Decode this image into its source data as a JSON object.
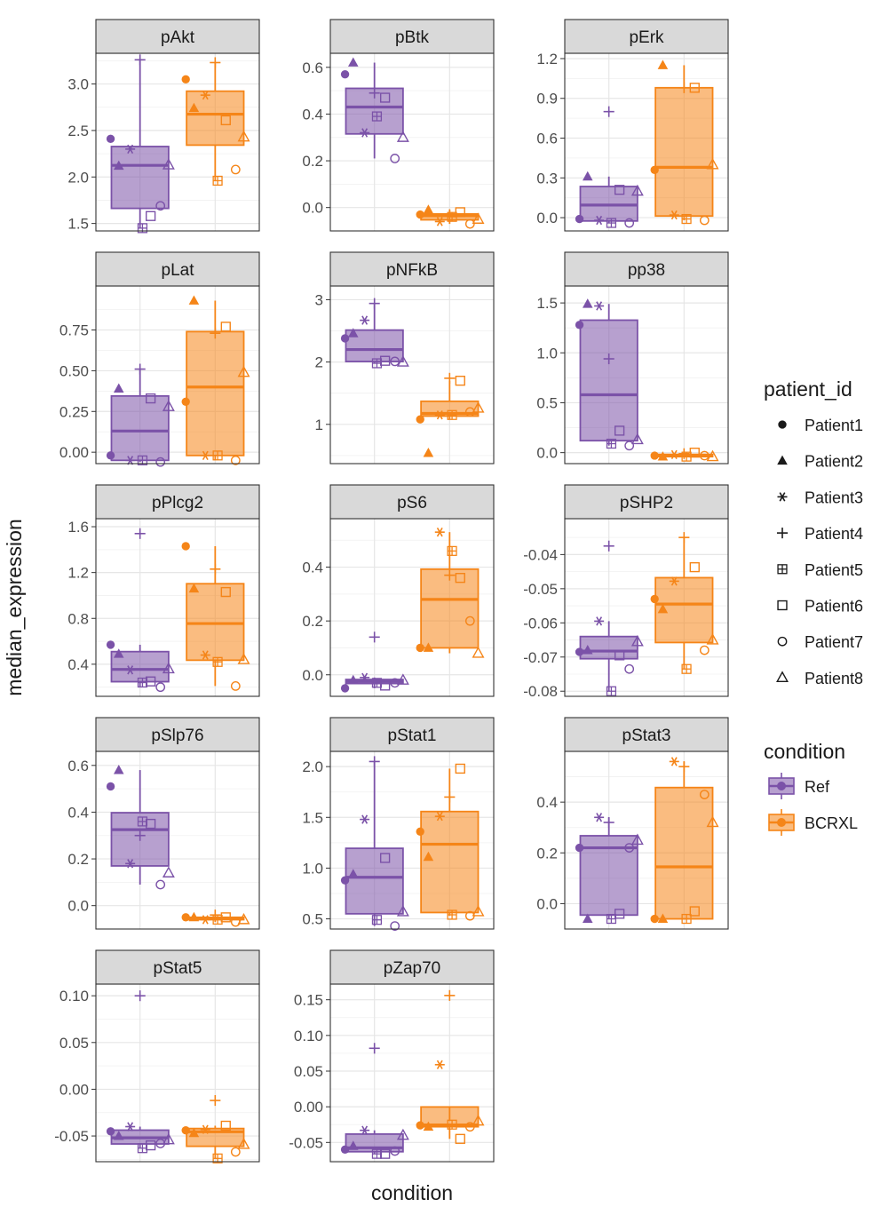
{
  "chart_data": {
    "type": "box",
    "xlabel": "condition",
    "ylabel": "median_expression",
    "conditions": [
      "Ref",
      "BCRXL"
    ],
    "patients": [
      "Patient1",
      "Patient2",
      "Patient3",
      "Patient4",
      "Patient5",
      "Patient6",
      "Patient7",
      "Patient8"
    ],
    "colors": {
      "Ref": "#7b52a8",
      "BCRXL": "#f58518"
    },
    "legend": {
      "patient_title": "patient_id",
      "patient_shapes": [
        "dot",
        "triangle",
        "asterisk",
        "plus",
        "boxed-plus",
        "square",
        "circle",
        "open-triangle"
      ],
      "condition_title": "condition",
      "placement": "right"
    },
    "grid": true,
    "panels": [
      {
        "title": "pAkt",
        "ylim": [
          1.42,
          3.33
        ],
        "yticks": [
          1.5,
          2.0,
          2.5,
          3.0
        ],
        "tick_labels": [
          "1.5",
          "2.0",
          "2.5",
          "3.0"
        ],
        "Ref": [
          2.41,
          2.12,
          2.3,
          3.26,
          1.45,
          1.58,
          1.69,
          2.13
        ],
        "BCRXL": [
          3.05,
          2.74,
          2.88,
          3.23,
          1.96,
          2.61,
          2.08,
          2.43
        ]
      },
      {
        "title": "pBtk",
        "ylim": [
          -0.1,
          0.66
        ],
        "yticks": [
          0.0,
          0.2,
          0.4,
          0.6
        ],
        "tick_labels": [
          "0.0",
          "0.2",
          "0.4",
          "0.6"
        ],
        "Ref": [
          0.57,
          0.62,
          0.32,
          0.49,
          0.39,
          0.47,
          0.21,
          0.3
        ],
        "BCRXL": [
          -0.03,
          -0.01,
          -0.06,
          -0.03,
          -0.04,
          -0.02,
          -0.07,
          -0.05
        ]
      },
      {
        "title": "pErk",
        "ylim": [
          -0.1,
          1.24
        ],
        "yticks": [
          0.0,
          0.3,
          0.6,
          0.9,
          1.2
        ],
        "tick_labels": [
          "0.0",
          "0.3",
          "0.6",
          "0.9",
          "1.2"
        ],
        "Ref": [
          -0.01,
          0.31,
          -0.02,
          0.8,
          -0.04,
          0.21,
          -0.04,
          0.2
        ],
        "BCRXL": [
          0.36,
          1.15,
          0.02,
          0.98,
          -0.01,
          0.98,
          -0.02,
          0.4
        ]
      },
      {
        "title": "pLat",
        "ylim": [
          -0.07,
          1.02
        ],
        "yticks": [
          0.0,
          0.25,
          0.5,
          0.75
        ],
        "tick_labels": [
          "0.00",
          "0.25",
          "0.50",
          "0.75"
        ],
        "Ref": [
          -0.02,
          0.39,
          -0.05,
          0.51,
          -0.05,
          0.33,
          -0.06,
          0.28
        ],
        "BCRXL": [
          0.31,
          0.93,
          -0.02,
          0.73,
          -0.02,
          0.77,
          -0.05,
          0.49
        ]
      },
      {
        "title": "pNFkB",
        "ylim": [
          0.37,
          3.22
        ],
        "yticks": [
          1,
          2,
          3
        ],
        "tick_labels": [
          "1",
          "2",
          "3"
        ],
        "Ref": [
          2.38,
          2.46,
          2.67,
          2.94,
          1.98,
          2.02,
          2.01,
          2.0
        ],
        "BCRXL": [
          1.08,
          0.54,
          1.15,
          1.74,
          1.15,
          1.7,
          1.2,
          1.26
        ]
      },
      {
        "title": "pp38",
        "ylim": [
          -0.11,
          1.67
        ],
        "yticks": [
          0.0,
          0.5,
          1.0,
          1.5
        ],
        "tick_labels": [
          "0.0",
          "0.5",
          "1.0",
          "1.5"
        ],
        "Ref": [
          1.28,
          1.49,
          1.47,
          0.94,
          0.09,
          0.22,
          0.07,
          0.13
        ],
        "BCRXL": [
          -0.03,
          -0.04,
          -0.02,
          -0.01,
          -0.04,
          0.0,
          -0.03,
          -0.04
        ]
      },
      {
        "title": "pPlcg2",
        "ylim": [
          0.12,
          1.67
        ],
        "yticks": [
          0.4,
          0.8,
          1.2,
          1.6
        ],
        "tick_labels": [
          "0.4",
          "0.8",
          "1.2",
          "1.6"
        ],
        "Ref": [
          0.57,
          0.49,
          0.35,
          1.54,
          0.24,
          0.25,
          0.2,
          0.36
        ],
        "BCRXL": [
          1.43,
          1.06,
          0.48,
          1.23,
          0.42,
          1.03,
          0.21,
          0.44
        ]
      },
      {
        "title": "pS6",
        "ylim": [
          -0.08,
          0.58
        ],
        "yticks": [
          0.0,
          0.2,
          0.4
        ],
        "tick_labels": [
          "0.0",
          "0.2",
          "0.4"
        ],
        "Ref": [
          -0.05,
          -0.02,
          -0.01,
          0.14,
          -0.03,
          -0.04,
          -0.03,
          -0.02
        ],
        "BCRXL": [
          0.1,
          0.1,
          0.53,
          0.37,
          0.46,
          0.36,
          0.2,
          0.08
        ]
      },
      {
        "title": "pSHP2",
        "ylim": [
          -0.0815,
          -0.0295
        ],
        "yticks": [
          -0.08,
          -0.07,
          -0.06,
          -0.05,
          -0.04
        ],
        "tick_labels": [
          "-0.08",
          "-0.07",
          "-0.06",
          "-0.05",
          "-0.04"
        ],
        "Ref": [
          -0.0685,
          -0.068,
          -0.0595,
          -0.0375,
          -0.08,
          -0.0695,
          -0.0735,
          -0.0655
        ],
        "BCRXL": [
          -0.053,
          -0.056,
          -0.0478,
          -0.035,
          -0.0735,
          -0.0437,
          -0.068,
          -0.065
        ]
      },
      {
        "title": "pSlp76",
        "ylim": [
          -0.1,
          0.66
        ],
        "yticks": [
          0.0,
          0.2,
          0.4,
          0.6
        ],
        "tick_labels": [
          "0.0",
          "0.2",
          "0.4",
          "0.6"
        ],
        "Ref": [
          0.51,
          0.58,
          0.18,
          0.3,
          0.36,
          0.35,
          0.09,
          0.14
        ],
        "BCRXL": [
          -0.05,
          -0.05,
          -0.06,
          -0.04,
          -0.06,
          -0.05,
          -0.07,
          -0.06
        ]
      },
      {
        "title": "pStat1",
        "ylim": [
          0.4,
          2.15
        ],
        "yticks": [
          0.5,
          1.0,
          1.5,
          2.0
        ],
        "tick_labels": [
          "0.5",
          "1.0",
          "1.5",
          "2.0"
        ],
        "Ref": [
          0.88,
          0.94,
          1.48,
          2.05,
          0.49,
          1.1,
          0.43,
          0.57
        ],
        "BCRXL": [
          1.36,
          1.11,
          1.51,
          1.7,
          0.54,
          1.98,
          0.53,
          0.57
        ]
      },
      {
        "title": "pStat3",
        "ylim": [
          -0.1,
          0.6
        ],
        "yticks": [
          0.0,
          0.2,
          0.4
        ],
        "tick_labels": [
          "0.0",
          "0.2",
          "0.4"
        ],
        "Ref": [
          0.22,
          -0.06,
          0.34,
          0.32,
          -0.06,
          -0.04,
          0.22,
          0.25
        ],
        "BCRXL": [
          -0.06,
          -0.06,
          0.56,
          0.54,
          -0.06,
          -0.03,
          0.43,
          0.32
        ]
      },
      {
        "title": "pStat5",
        "ylim": [
          -0.0775,
          0.1125
        ],
        "yticks": [
          -0.05,
          0.0,
          0.05,
          0.1
        ],
        "tick_labels": [
          "-0.05",
          "0.00",
          "0.05",
          "0.10"
        ],
        "Ref": [
          -0.045,
          -0.05,
          -0.04,
          0.1,
          -0.063,
          -0.06,
          -0.058,
          -0.054
        ],
        "BCRXL": [
          -0.044,
          -0.047,
          -0.043,
          -0.012,
          -0.074,
          -0.039,
          -0.067,
          -0.059
        ]
      },
      {
        "title": "pZap70",
        "ylim": [
          -0.077,
          0.172
        ],
        "yticks": [
          -0.05,
          0.0,
          0.05,
          0.1,
          0.15
        ],
        "tick_labels": [
          "-0.05",
          "0.00",
          "0.05",
          "0.10",
          "0.15"
        ],
        "Ref": [
          -0.06,
          -0.055,
          -0.033,
          0.082,
          -0.066,
          -0.066,
          -0.062,
          -0.04
        ],
        "BCRXL": [
          -0.026,
          -0.028,
          0.059,
          0.156,
          -0.025,
          -0.045,
          -0.028,
          -0.02
        ]
      }
    ]
  }
}
